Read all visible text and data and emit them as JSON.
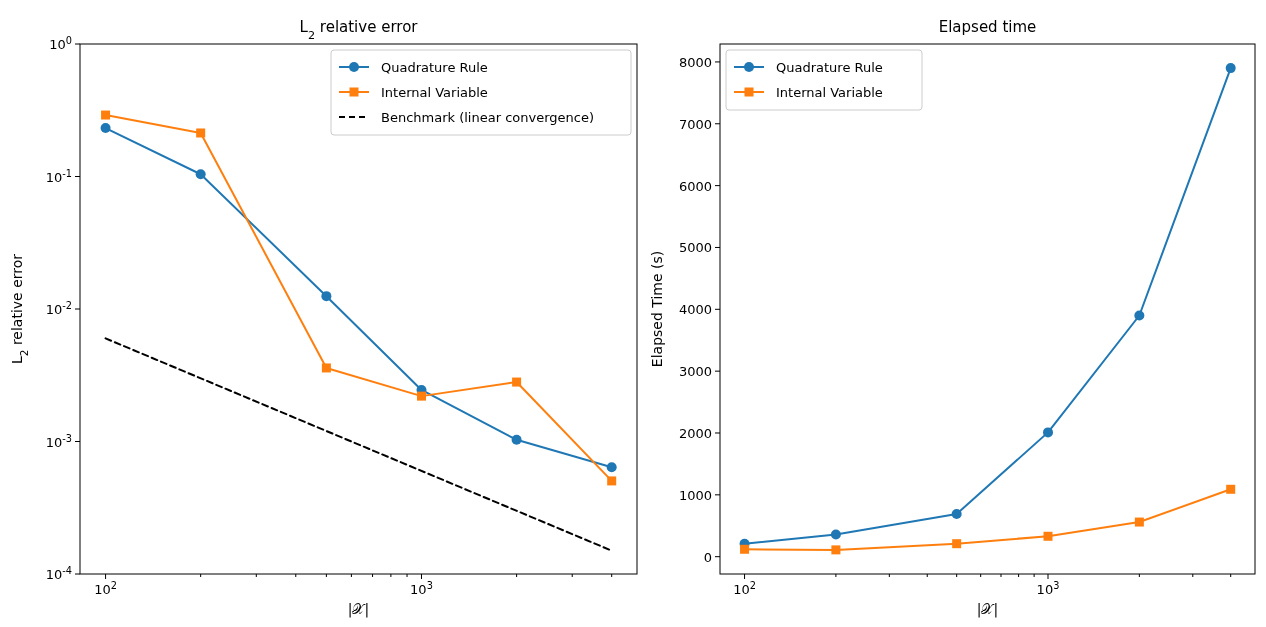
{
  "chart_data": [
    {
      "type": "line",
      "title": "L$_{2}$ relative error",
      "xlabel": "|𝒳|",
      "ylabel": "L$_{2}$ relative error",
      "log": "xy",
      "grid": false,
      "legend": "top right",
      "x": [
        100,
        200,
        500,
        1000,
        2000,
        4000
      ],
      "xlim": [
        83,
        4810
      ],
      "ylim": [
        0.0001,
        1
      ],
      "xticks": [
        {
          "value": 100,
          "label": "10$^{2}$"
        },
        {
          "value": 200,
          "label": null
        },
        {
          "value": 300,
          "label": null
        },
        {
          "value": 400,
          "label": null
        },
        {
          "value": 500,
          "label": null
        },
        {
          "value": 600,
          "label": null
        },
        {
          "value": 700,
          "label": null
        },
        {
          "value": 800,
          "label": null
        },
        {
          "value": 900,
          "label": null
        },
        {
          "value": 1000,
          "label": "10$^{3}$"
        },
        {
          "value": 2000,
          "label": null
        },
        {
          "value": 3000,
          "label": null
        },
        {
          "value": 4000,
          "label": null
        }
      ],
      "yticks": [
        {
          "value": 0.0001,
          "label": "10$^{-4}$"
        },
        {
          "value": 0.001,
          "label": "10$^{-3}$"
        },
        {
          "value": 0.01,
          "label": "10$^{-2}$"
        },
        {
          "value": 0.1,
          "label": "10$^{-1}$"
        },
        {
          "value": 1,
          "label": "10$^{0}$"
        }
      ],
      "series": [
        {
          "name": "Quadrature Rule",
          "color": "#1f77b4",
          "marker": "circle",
          "line_style": "solid",
          "values": [
            0.232,
            0.104,
            0.0125,
            0.00245,
            0.00103,
            0.00064
          ]
        },
        {
          "name": "Internal Variable",
          "color": "#ff7f0e",
          "marker": "square",
          "line_style": "solid",
          "values": [
            0.291,
            0.213,
            0.00359,
            0.0022,
            0.00281,
            0.000504
          ]
        },
        {
          "name": "Benchmark (linear convergence)",
          "color": "#000000",
          "marker": "none",
          "line_style": "dashed",
          "x": [
            100,
            4000
          ],
          "values": [
            0.006,
            0.00015
          ]
        }
      ]
    },
    {
      "type": "line",
      "title": "Elapsed time",
      "xlabel": "|𝒳|",
      "ylabel": "Elapsed Time (s)",
      "log": "x",
      "grid": false,
      "legend": "top left",
      "x": [
        100,
        200,
        500,
        1000,
        2000,
        4000
      ],
      "xlim": [
        83,
        4810
      ],
      "ylim": [
        -280,
        8290
      ],
      "xticks": [
        {
          "value": 100,
          "label": "10$^{2}$"
        },
        {
          "value": 200,
          "label": null
        },
        {
          "value": 300,
          "label": null
        },
        {
          "value": 400,
          "label": null
        },
        {
          "value": 500,
          "label": null
        },
        {
          "value": 600,
          "label": null
        },
        {
          "value": 700,
          "label": null
        },
        {
          "value": 800,
          "label": null
        },
        {
          "value": 900,
          "label": null
        },
        {
          "value": 1000,
          "label": "10$^{3}$"
        },
        {
          "value": 2000,
          "label": null
        },
        {
          "value": 3000,
          "label": null
        },
        {
          "value": 4000,
          "label": null
        }
      ],
      "yticks": [
        0,
        1000,
        2000,
        3000,
        4000,
        5000,
        6000,
        7000,
        8000
      ],
      "series": [
        {
          "name": "Quadrature Rule",
          "color": "#1f77b4",
          "marker": "circle",
          "line_style": "solid",
          "values": [
            210,
            360,
            690,
            2010,
            3900,
            7900
          ]
        },
        {
          "name": "Internal Variable",
          "color": "#ff7f0e",
          "marker": "square",
          "line_style": "solid",
          "values": [
            120,
            110,
            210,
            330,
            560,
            1090
          ]
        }
      ]
    }
  ]
}
